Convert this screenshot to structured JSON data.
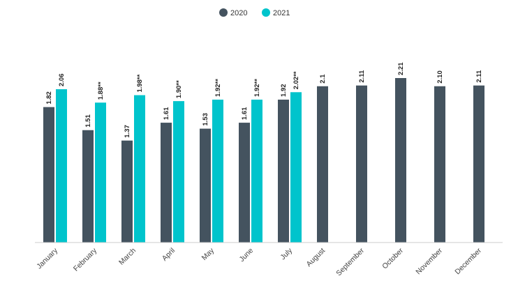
{
  "chart_data": {
    "type": "bar",
    "categories": [
      "January",
      "February",
      "March",
      "April",
      "May",
      "June",
      "July",
      "August",
      "September",
      "October",
      "November",
      "December"
    ],
    "series": [
      {
        "name": "2020",
        "color": "#44535f",
        "values": [
          1.82,
          1.51,
          1.37,
          1.61,
          1.53,
          1.61,
          1.92,
          2.1,
          2.11,
          2.21,
          2.1,
          2.11
        ],
        "labels": [
          "1.82",
          "1.51",
          "1.37",
          "1.61",
          "1.53",
          "1.61",
          "1.92",
          "2.1",
          "2.11",
          "2.21",
          "2.10",
          "2.11"
        ]
      },
      {
        "name": "2021",
        "color": "#00c4cc",
        "values": [
          2.06,
          1.88,
          1.98,
          1.9,
          1.92,
          1.92,
          2.02,
          null,
          null,
          null,
          null,
          null
        ],
        "labels": [
          "2.06",
          "1.88**",
          "1.98**",
          "1.90**",
          "1.92**",
          "1.92**",
          "2.02**",
          null,
          null,
          null,
          null,
          null
        ]
      }
    ],
    "title": "",
    "xlabel": "",
    "ylabel": "",
    "ylim": [
      0,
      2.21
    ],
    "grid": false,
    "legend_position": "top-center"
  }
}
